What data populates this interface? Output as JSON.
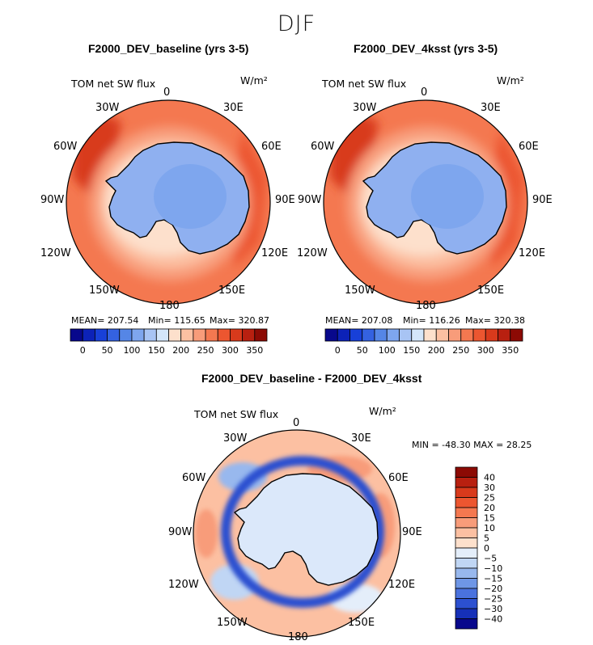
{
  "suptitle": "DJF",
  "panels": [
    {
      "title": "F2000_DEV_baseline (yrs 3-5)",
      "left_label": "TOM net SW flux",
      "units": "W/m²",
      "stats": {
        "mean": "MEAN= 207.54",
        "min": "Min= 115.65",
        "max": "Max= 320.87"
      }
    },
    {
      "title": "F2000_DEV_4ksst (yrs 3-5)",
      "left_label": "TOM net SW flux",
      "units": "W/m²",
      "stats": {
        "mean": "MEAN= 207.08",
        "min": "Min= 116.26",
        "max": "Max= 320.38"
      }
    },
    {
      "title": "F2000_DEV_baseline - F2000_DEV_4ksst",
      "left_label": "TOM net SW flux",
      "units": "W/m²",
      "minmax": "MIN = -48.30 MAX =  28.25"
    }
  ],
  "longitudes": [
    "0",
    "30E",
    "60E",
    "90E",
    "120E",
    "150E",
    "180",
    "150W",
    "120W",
    "90W",
    "60W",
    "30W"
  ],
  "colorbar_abs": {
    "ticks": [
      "0",
      "50",
      "100",
      "150",
      "200",
      "250",
      "300",
      "350"
    ],
    "colors": [
      "#08088c",
      "#0c22b8",
      "#1840d8",
      "#3462e0",
      "#5586e6",
      "#7ea6ee",
      "#a8c4f4",
      "#d4e6fa",
      "#fde0cc",
      "#fcc0a2",
      "#f89c7a",
      "#f47850",
      "#ec5630",
      "#d83a1c",
      "#b82010",
      "#8c0a04"
    ]
  },
  "colorbar_diff": {
    "ticks": [
      "40",
      "30",
      "25",
      "20",
      "15",
      "10",
      "5",
      "0",
      "−5",
      "−10",
      "−15",
      "−20",
      "−25",
      "−30",
      "−40"
    ],
    "colors": [
      "#8c0a04",
      "#b82010",
      "#d83a1c",
      "#ec5630",
      "#f47850",
      "#f89c7a",
      "#fcc0a2",
      "#fde0cc",
      "#e4eefa",
      "#c0d6f4",
      "#98b8ee",
      "#6e96e6",
      "#4a72de",
      "#2c50d0",
      "#1630b8",
      "#08088c"
    ]
  },
  "colors": {
    "land_abs": "#8fb0f0",
    "land_diff": "#dbe8fa",
    "coast": "#000000"
  }
}
